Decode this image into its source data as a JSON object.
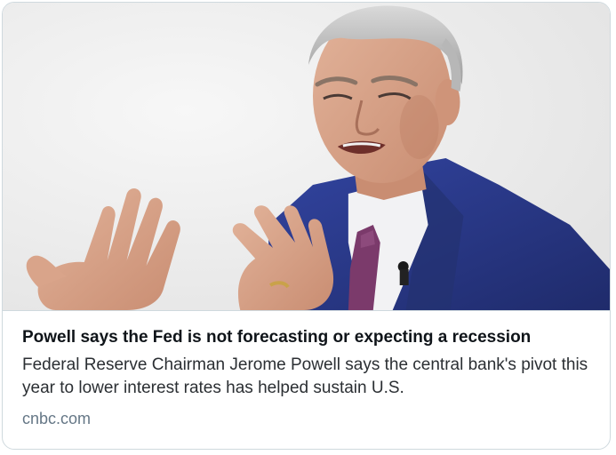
{
  "card": {
    "image_alt": "Jerome Powell speaking with raised hands",
    "headline": "Powell says the Fed is not forecasting or expecting a recession",
    "summary": "Federal Reserve Chairman Jerome Powell says the central bank's pivot this year to lower interest rates has helped sustain U.S.",
    "domain": "cnbc.com"
  },
  "colors": {
    "border": "#cfd9de",
    "headline": "#0f1419",
    "summary": "#2b2f33",
    "domain": "#657786",
    "suit": "#2a3a86",
    "tie": "#7b3a6b"
  }
}
